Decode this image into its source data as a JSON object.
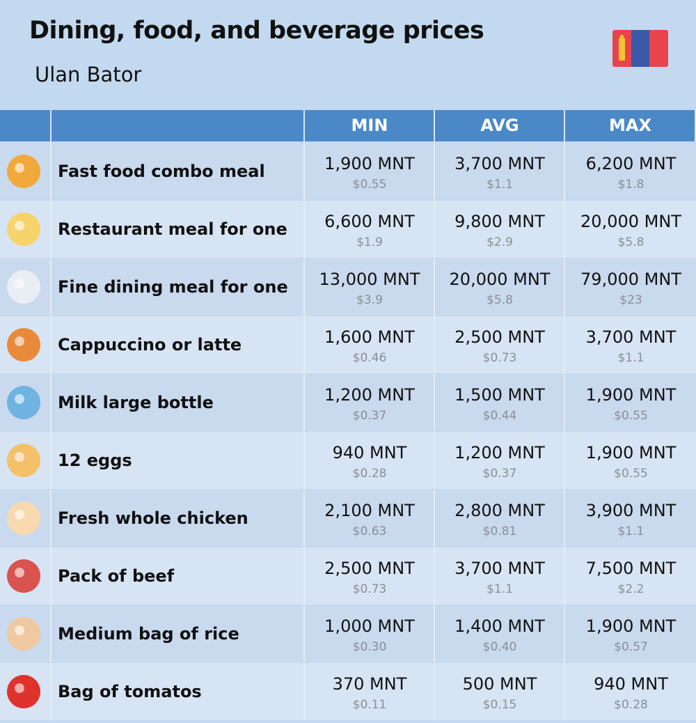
{
  "header": {
    "title": "Dining, food, and beverage prices",
    "subtitle": "Ulan Bator"
  },
  "table": {
    "columns": [
      "MIN",
      "AVG",
      "MAX"
    ],
    "rows": [
      {
        "name": "Fast food combo meal",
        "min": "1,900 MNT",
        "min_usd": "$0.55",
        "avg": "3,700 MNT",
        "avg_usd": "$1.1",
        "max": "6,200 MNT",
        "max_usd": "$1.8"
      },
      {
        "name": "Restaurant meal for one",
        "min": "6,600 MNT",
        "min_usd": "$1.9",
        "avg": "9,800 MNT",
        "avg_usd": "$2.9",
        "max": "20,000 MNT",
        "max_usd": "$5.8"
      },
      {
        "name": "Fine dining meal for one",
        "min": "13,000 MNT",
        "min_usd": "$3.9",
        "avg": "20,000 MNT",
        "avg_usd": "$5.8",
        "max": "79,000 MNT",
        "max_usd": "$23"
      },
      {
        "name": "Cappuccino or latte",
        "min": "1,600 MNT",
        "min_usd": "$0.46",
        "avg": "2,500 MNT",
        "avg_usd": "$0.73",
        "max": "3,700 MNT",
        "max_usd": "$1.1"
      },
      {
        "name": "Milk large bottle",
        "min": "1,200 MNT",
        "min_usd": "$0.37",
        "avg": "1,500 MNT",
        "avg_usd": "$0.44",
        "max": "1,900 MNT",
        "max_usd": "$0.55"
      },
      {
        "name": "12 eggs",
        "min": "940 MNT",
        "min_usd": "$0.28",
        "avg": "1,200 MNT",
        "avg_usd": "$0.37",
        "max": "1,900 MNT",
        "max_usd": "$0.55"
      },
      {
        "name": "Fresh whole chicken",
        "min": "2,100 MNT",
        "min_usd": "$0.63",
        "avg": "2,800 MNT",
        "avg_usd": "$0.81",
        "max": "3,900 MNT",
        "max_usd": "$1.1"
      },
      {
        "name": "Pack of beef",
        "min": "2,500 MNT",
        "min_usd": "$0.73",
        "avg": "3,700 MNT",
        "avg_usd": "$1.1",
        "max": "7,500 MNT",
        "max_usd": "$2.2"
      },
      {
        "name": "Medium bag of rice",
        "min": "1,000 MNT",
        "min_usd": "$0.30",
        "avg": "1,400 MNT",
        "avg_usd": "$0.40",
        "max": "1,900 MNT",
        "max_usd": "$0.57"
      },
      {
        "name": "Bag of tomatos",
        "min": "370 MNT",
        "min_usd": "$0.11",
        "avg": "500 MNT",
        "avg_usd": "$0.15",
        "max": "940 MNT",
        "max_usd": "$0.28"
      }
    ]
  }
}
